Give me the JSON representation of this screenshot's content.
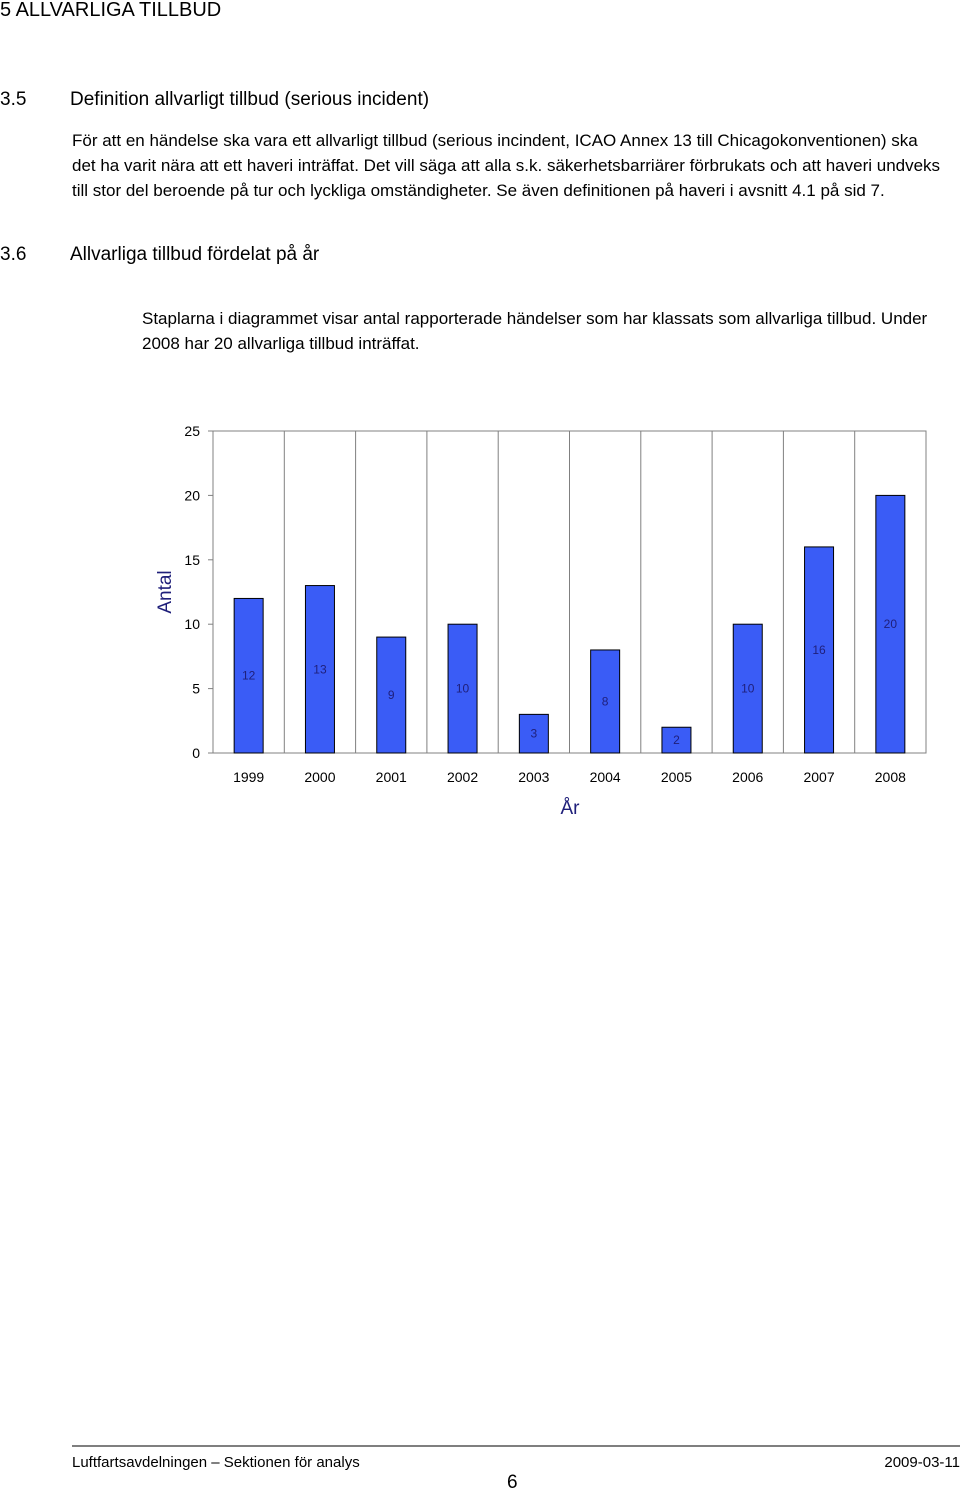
{
  "header": {
    "chapter_title": "5 ALLVARLIGA TILLBUD"
  },
  "section_35": {
    "number": "3.5",
    "title": "Definition allvarligt tillbud (serious incident)",
    "body": "För att en händelse ska vara ett allvarligt tillbud (serious incindent, ICAO Annex 13 till Chicagokonventionen) ska det ha varit nära att ett haveri inträffat. Det vill säga att alla s.k. säkerhetsbarriärer förbrukats och att haveri undveks till stor del beroende på tur och lyckliga omständigheter. Se även definitionen på haveri i avsnitt 4.1 på sid 7."
  },
  "section_36": {
    "number": "3.6",
    "title": "Allvarliga tillbud fördelat på år",
    "body": "Staplarna i diagrammet visar antal rapporterade händelser som har klassats som allvarliga tillbud. Under 2008 har 20 allvarliga tillbud inträffat."
  },
  "chart_data": {
    "type": "bar",
    "categories": [
      "1999",
      "2000",
      "2001",
      "2002",
      "2003",
      "2004",
      "2005",
      "2006",
      "2007",
      "2008"
    ],
    "values": [
      12,
      13,
      9,
      10,
      3,
      8,
      2,
      10,
      16,
      20
    ],
    "data_labels": [
      "12",
      "13",
      "9",
      "10",
      "3",
      "8",
      "2",
      "10",
      "16",
      "20"
    ],
    "xlabel": "År",
    "ylabel": "Antal",
    "ylim": [
      0,
      25
    ],
    "yticks": [
      0,
      5,
      10,
      15,
      20,
      25
    ],
    "bar_color": "#3a5cf6",
    "label_color": "#1f1f7a",
    "grid": true
  },
  "footer": {
    "left": "Luftfartsavdelningen – Sektionen för analys",
    "right": "2009-03-11",
    "page_number": "6"
  }
}
